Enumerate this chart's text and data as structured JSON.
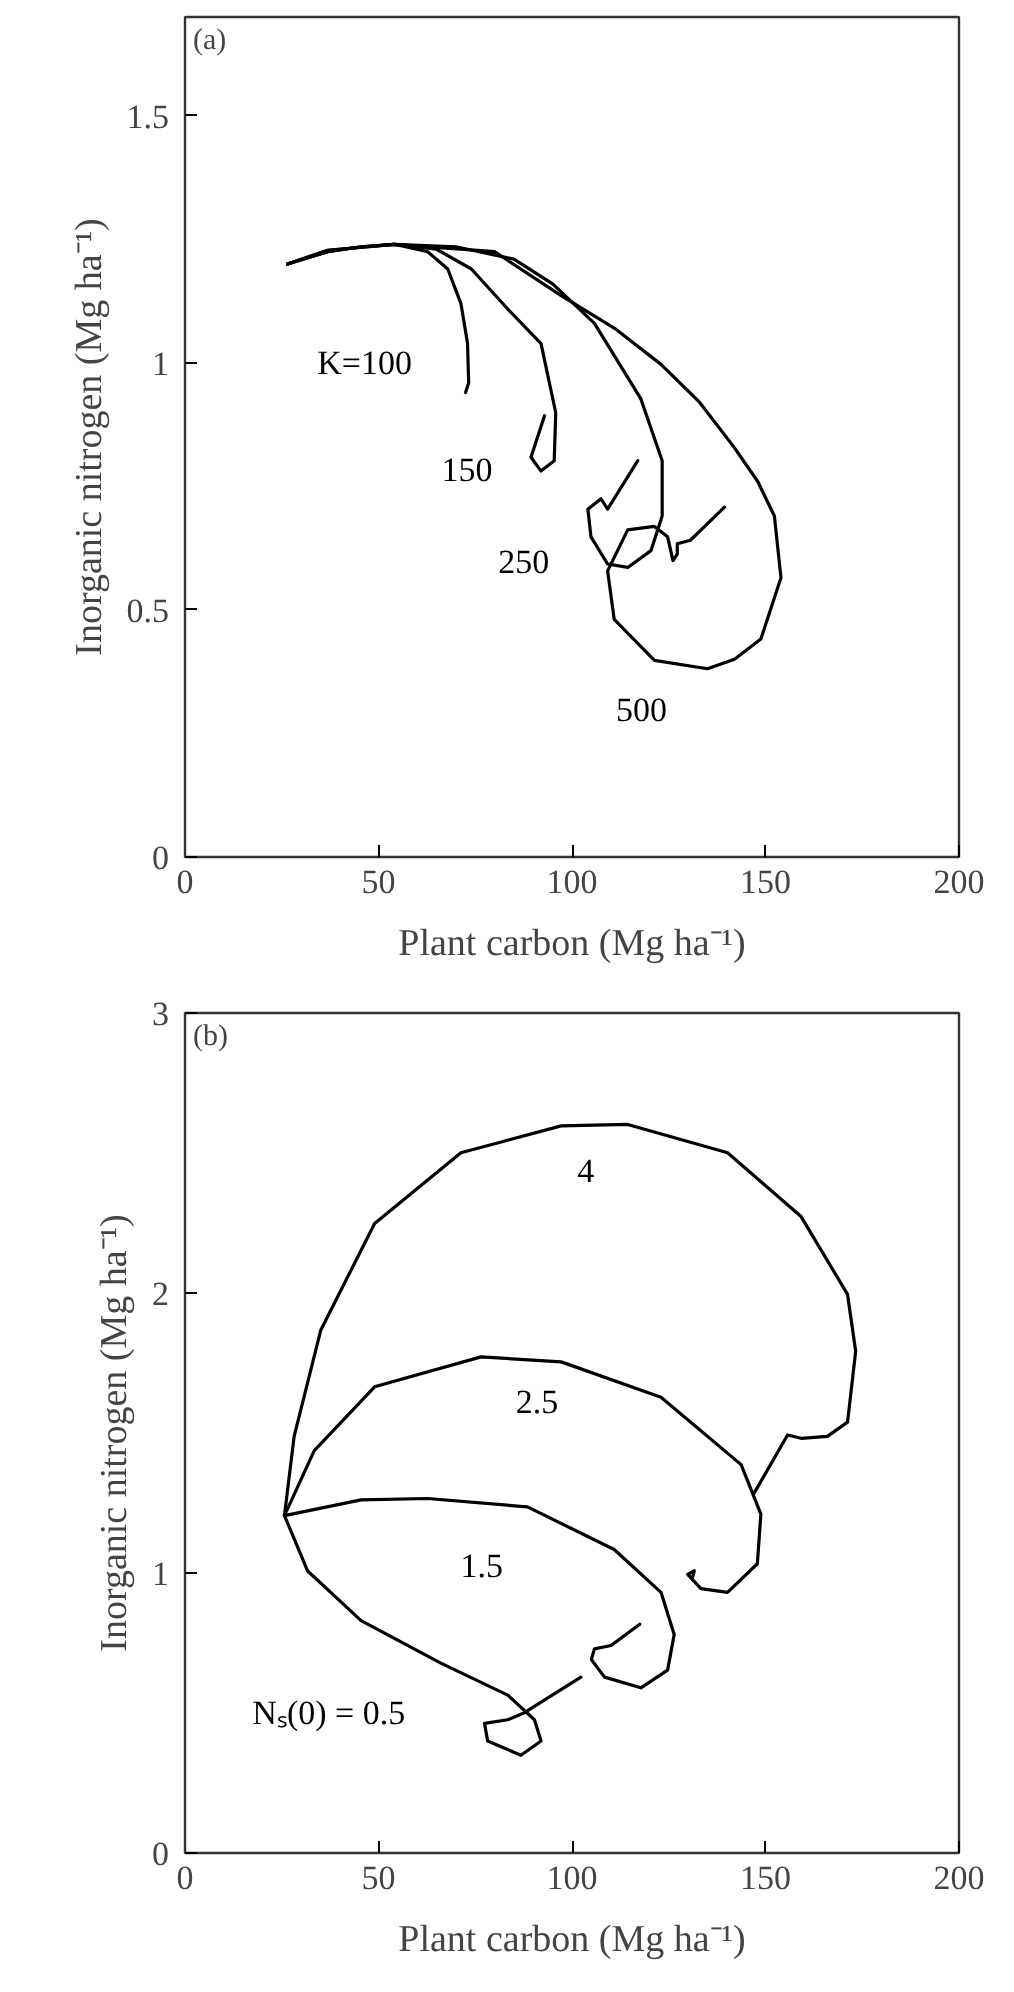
{
  "chart_data": [
    {
      "type": "line",
      "xlabel": "Plant carbon (Mg ha⁻¹)",
      "ylabel": "Inorganic nitrogen (Mg ha⁻¹)",
      "xlim": [
        0,
        200
      ],
      "ylim": [
        0,
        1.7
      ],
      "xticks": [
        0,
        50,
        100,
        150,
        200
      ],
      "yticks": [
        0,
        0.5,
        1,
        1.5
      ],
      "series": [
        {
          "name": "K=100",
          "color": "#000000",
          "x": [
            26.5,
            36.9,
            45.5,
            54.1,
            62.7,
            67.9,
            71.3,
            73.0,
            73.3,
            72.5
          ],
          "values": [
            1.2,
            1.225,
            1.235,
            1.24,
            1.225,
            1.19,
            1.12,
            1.04,
            0.96,
            0.94
          ]
        },
        {
          "name": "150",
          "color": "#000000",
          "x": [
            26.5,
            36.9,
            45.5,
            54.1,
            65,
            74,
            83.4,
            92,
            95.8,
            95.4,
            92,
            89.4,
            92.9
          ],
          "values": [
            1.2,
            1.225,
            1.235,
            1.24,
            1.23,
            1.19,
            1.109,
            1.039,
            0.899,
            0.802,
            0.781,
            0.809,
            0.893
          ]
        },
        {
          "name": "250",
          "color": "#000000",
          "x": [
            26.5,
            36.9,
            54.1,
            70,
            85,
            95,
            105.8,
            117.8,
            123.3,
            123.3,
            120.4,
            114.4,
            109.2,
            104.9,
            104.1,
            107.5,
            109.2,
            117.0
          ],
          "values": [
            1.2,
            1.228,
            1.24,
            1.235,
            1.21,
            1.16,
            1.08,
            0.927,
            0.802,
            0.69,
            0.62,
            0.586,
            0.593,
            0.648,
            0.704,
            0.725,
            0.704,
            0.802
          ]
        },
        {
          "name": "500",
          "color": "#000000",
          "x": [
            26.5,
            36.9,
            54.1,
            80,
            97.2,
            111,
            123,
            133,
            141.9,
            148,
            152.3,
            154,
            148.8,
            142,
            135,
            121.3,
            110.9,
            109.2,
            114.4,
            121.3,
            124.7,
            126.1,
            127.2,
            127.2,
            130.6,
            139.4
          ],
          "values": [
            1.2,
            1.228,
            1.24,
            1.225,
            1.136,
            1.07,
            0.997,
            0.92,
            0.829,
            0.76,
            0.69,
            0.565,
            0.441,
            0.4,
            0.381,
            0.398,
            0.481,
            0.579,
            0.662,
            0.669,
            0.648,
            0.6,
            0.613,
            0.634,
            0.641,
            0.708
          ]
        }
      ],
      "annotations": [
        "(a)"
      ]
    },
    {
      "type": "line",
      "xlabel": "Plant carbon (Mg ha⁻¹)",
      "ylabel": "Inorganic nitrogen (Mg ha⁻¹)",
      "xlim": [
        0,
        200
      ],
      "ylim": [
        0,
        3
      ],
      "xticks": [
        0,
        50,
        100,
        150,
        200
      ],
      "yticks": [
        0,
        1,
        2,
        3
      ],
      "series": [
        {
          "name": "4",
          "color": "#000000",
          "x": [
            25.7,
            28.2,
            35.1,
            49,
            71.3,
            97.2,
            114.4,
            140.2,
            159.2,
            171.2,
            173.3,
            171.2,
            166,
            159.2,
            155.7,
            147.1
          ],
          "values": [
            1.205,
            1.488,
            1.868,
            2.248,
            2.501,
            2.597,
            2.602,
            2.501,
            2.273,
            1.995,
            1.792,
            1.539,
            1.488,
            1.481,
            1.493,
            1.286
          ]
        },
        {
          "name": "2.5",
          "color": "#000000",
          "x": [
            25.7,
            33.4,
            49,
            76.5,
            97.2,
            123,
            143.7,
            148.8,
            147.9,
            140.2,
            133.3,
            129.9,
            131.6,
            131.1
          ],
          "values": [
            1.205,
            1.437,
            1.665,
            1.772,
            1.754,
            1.628,
            1.387,
            1.21,
            1.033,
            0.931,
            0.944,
            0.995,
            1.008,
            0.982
          ]
        },
        {
          "name": "1.5",
          "color": "#000000",
          "x": [
            25.7,
            45.5,
            62.7,
            88.5,
            110.9,
            123,
            126.4,
            124.7,
            117.8,
            108.4,
            105,
            105.8,
            110.1,
            117.5
          ],
          "values": [
            1.205,
            1.261,
            1.266,
            1.236,
            1.084,
            0.931,
            0.78,
            0.653,
            0.59,
            0.628,
            0.691,
            0.729,
            0.741,
            0.817
          ]
        },
        {
          "name": "Nₛ(0) = 0.5",
          "color": "#000000",
          "x": [
            25.7,
            31.7,
            45.5,
            66.1,
            83.4,
            90.3,
            92,
            86.8,
            78.2,
            77.4,
            83.4,
            87.7,
            102.3
          ],
          "values": [
            1.205,
            1.007,
            0.83,
            0.678,
            0.564,
            0.476,
            0.4,
            0.349,
            0.4,
            0.463,
            0.476,
            0.501,
            0.628
          ]
        }
      ],
      "annotations": [
        "(b)"
      ]
    }
  ]
}
